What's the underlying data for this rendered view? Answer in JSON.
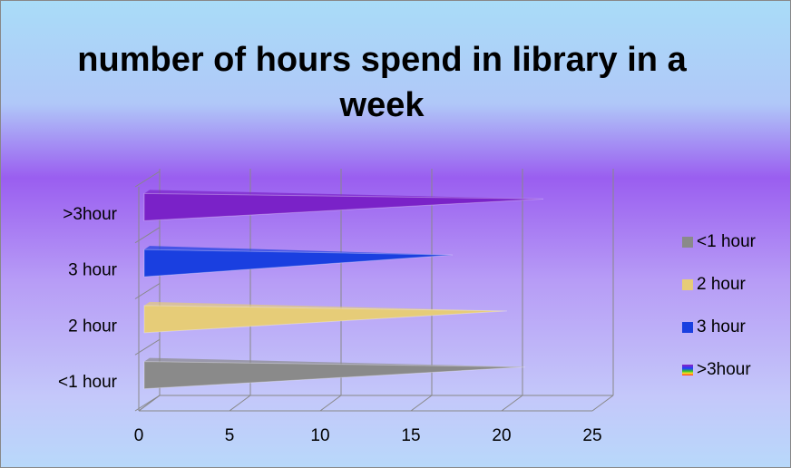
{
  "chart_data": {
    "type": "bar3d",
    "title": "number of hours spend in library in a   week",
    "categories": [
      "<1 hour",
      "2 hour",
      "3 hour",
      ">3hour"
    ],
    "values": [
      21,
      20,
      17,
      22
    ],
    "colors": [
      "#8a8a8a",
      "#e6cc78",
      "#1a3fe0",
      "#7a22c8"
    ],
    "xlim": [
      0,
      25
    ],
    "xticks": [
      0,
      5,
      10,
      15,
      20,
      25
    ],
    "grid": true,
    "legend": "right"
  }
}
